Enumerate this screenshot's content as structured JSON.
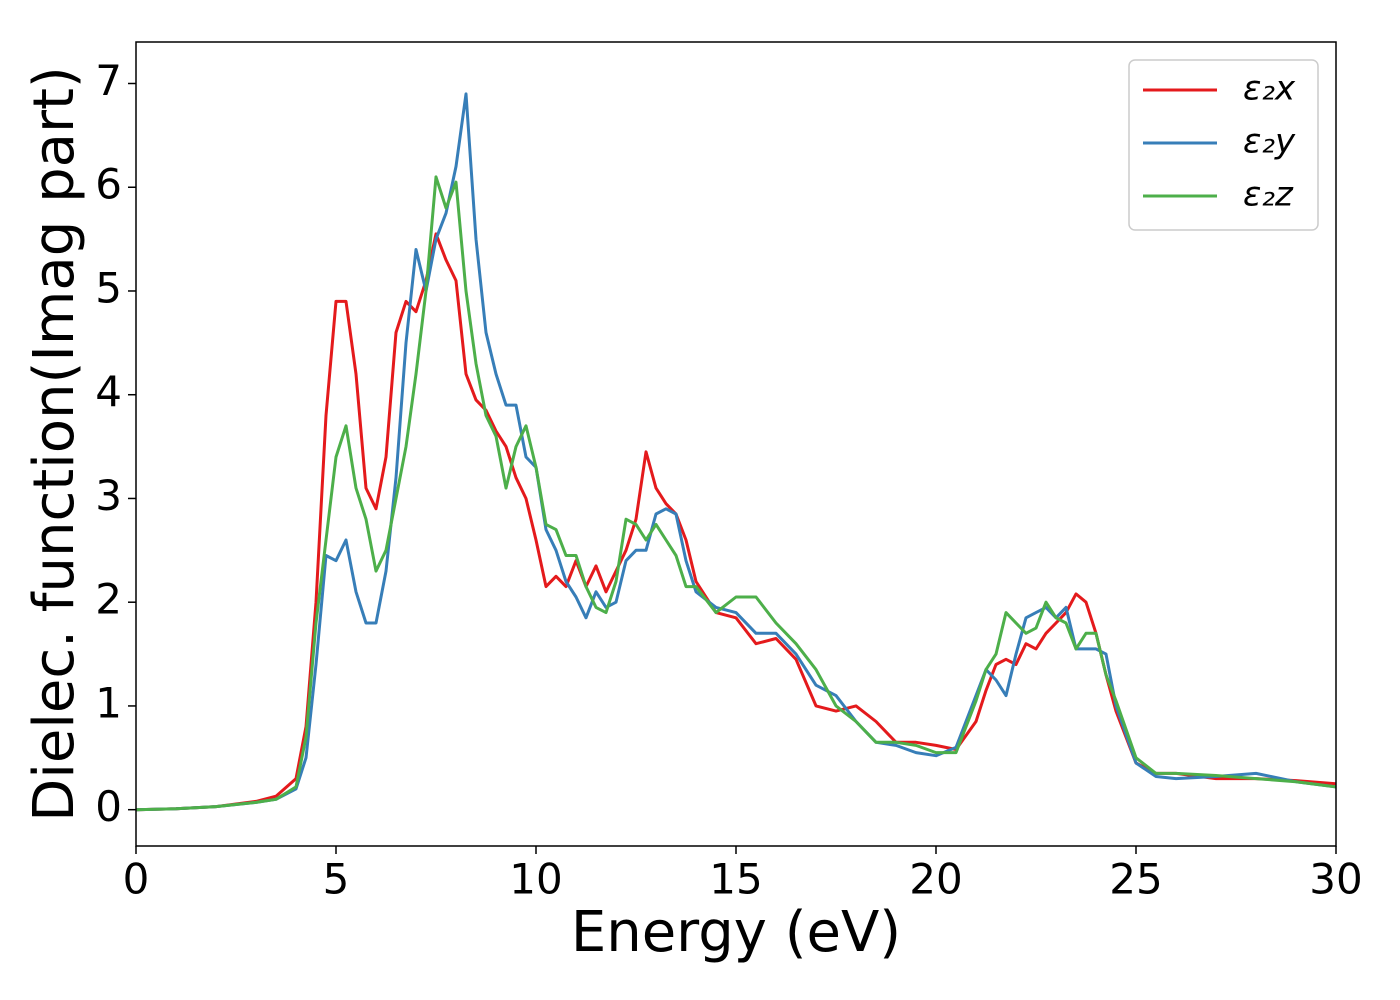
{
  "chart_data": {
    "type": "line",
    "xlabel": "Energy (eV)",
    "ylabel": "Dielec. function(Imag part)",
    "x": [
      0,
      1,
      2,
      3,
      3.5,
      4,
      4.25,
      4.5,
      4.75,
      5,
      5.25,
      5.5,
      5.75,
      6,
      6.25,
      6.5,
      6.75,
      7,
      7.25,
      7.5,
      7.75,
      8,
      8.25,
      8.5,
      8.75,
      9,
      9.25,
      9.5,
      9.75,
      10,
      10.25,
      10.5,
      10.75,
      11,
      11.25,
      11.5,
      11.75,
      12,
      12.25,
      12.5,
      12.75,
      13,
      13.25,
      13.5,
      13.75,
      14,
      14.5,
      15,
      15.5,
      16,
      16.5,
      17,
      17.5,
      18,
      18.5,
      19,
      19.5,
      20,
      20.5,
      21,
      21.25,
      21.5,
      21.75,
      22,
      22.25,
      22.5,
      22.75,
      23,
      23.25,
      23.5,
      23.75,
      24,
      24.25,
      24.5,
      25,
      25.5,
      26,
      27,
      28,
      29,
      30
    ],
    "series": [
      {
        "name": "ε₂x",
        "color": "#e41a1c",
        "values": [
          0,
          0.01,
          0.03,
          0.08,
          0.13,
          0.3,
          0.8,
          2.0,
          3.8,
          4.9,
          4.9,
          4.2,
          3.1,
          2.9,
          3.4,
          4.6,
          4.9,
          4.8,
          5.1,
          5.55,
          5.3,
          5.1,
          4.2,
          3.95,
          3.85,
          3.65,
          3.5,
          3.2,
          3.0,
          2.6,
          2.15,
          2.25,
          2.15,
          2.4,
          2.15,
          2.35,
          2.1,
          2.3,
          2.5,
          2.8,
          3.45,
          3.1,
          2.95,
          2.85,
          2.6,
          2.2,
          1.9,
          1.85,
          1.6,
          1.65,
          1.45,
          1.0,
          0.95,
          1.0,
          0.85,
          0.65,
          0.65,
          0.62,
          0.58,
          0.85,
          1.15,
          1.4,
          1.45,
          1.4,
          1.6,
          1.55,
          1.7,
          1.8,
          1.9,
          2.08,
          2.0,
          1.7,
          1.3,
          0.95,
          0.45,
          0.35,
          0.35,
          0.3,
          0.3,
          0.28,
          0.25
        ]
      },
      {
        "name": "ε₂y",
        "color": "#377eb8",
        "values": [
          0,
          0.01,
          0.03,
          0.07,
          0.1,
          0.2,
          0.5,
          1.4,
          2.45,
          2.4,
          2.6,
          2.1,
          1.8,
          1.8,
          2.3,
          3.2,
          4.5,
          5.4,
          5.0,
          5.5,
          5.75,
          6.2,
          6.9,
          5.5,
          4.6,
          4.2,
          3.9,
          3.9,
          3.4,
          3.3,
          2.7,
          2.5,
          2.2,
          2.05,
          1.85,
          2.1,
          1.95,
          2.0,
          2.4,
          2.5,
          2.5,
          2.85,
          2.9,
          2.85,
          2.4,
          2.1,
          1.95,
          1.9,
          1.7,
          1.7,
          1.5,
          1.2,
          1.1,
          0.85,
          0.65,
          0.62,
          0.55,
          0.52,
          0.6,
          1.1,
          1.35,
          1.25,
          1.1,
          1.5,
          1.85,
          1.9,
          1.95,
          1.85,
          1.95,
          1.55,
          1.55,
          1.55,
          1.5,
          1.0,
          0.45,
          0.32,
          0.3,
          0.32,
          0.35,
          0.27,
          0.22
        ]
      },
      {
        "name": "ε₂z",
        "color": "#4daf4a",
        "values": [
          0,
          0.01,
          0.03,
          0.07,
          0.1,
          0.22,
          0.7,
          1.8,
          2.6,
          3.4,
          3.7,
          3.1,
          2.8,
          2.3,
          2.5,
          3.0,
          3.5,
          4.2,
          5.0,
          6.1,
          5.8,
          6.05,
          5.0,
          4.3,
          3.8,
          3.6,
          3.1,
          3.5,
          3.7,
          3.3,
          2.75,
          2.7,
          2.45,
          2.45,
          2.15,
          1.95,
          1.9,
          2.2,
          2.8,
          2.75,
          2.6,
          2.75,
          2.6,
          2.45,
          2.15,
          2.15,
          1.9,
          2.05,
          2.05,
          1.8,
          1.6,
          1.35,
          1.0,
          0.85,
          0.65,
          0.65,
          0.62,
          0.55,
          0.55,
          1.05,
          1.35,
          1.5,
          1.9,
          1.8,
          1.7,
          1.75,
          2.0,
          1.85,
          1.8,
          1.55,
          1.7,
          1.7,
          1.3,
          1.05,
          0.5,
          0.35,
          0.35,
          0.33,
          0.3,
          0.27,
          0.22
        ]
      }
    ],
    "xlim": [
      0,
      30
    ],
    "xticks": [
      0,
      5,
      10,
      15,
      20,
      25,
      30
    ],
    "ylim": [
      -0.35,
      7.4
    ],
    "yticks": [
      0,
      1,
      2,
      3,
      4,
      5,
      6,
      7
    ],
    "grid": false,
    "legend": "upper right"
  }
}
